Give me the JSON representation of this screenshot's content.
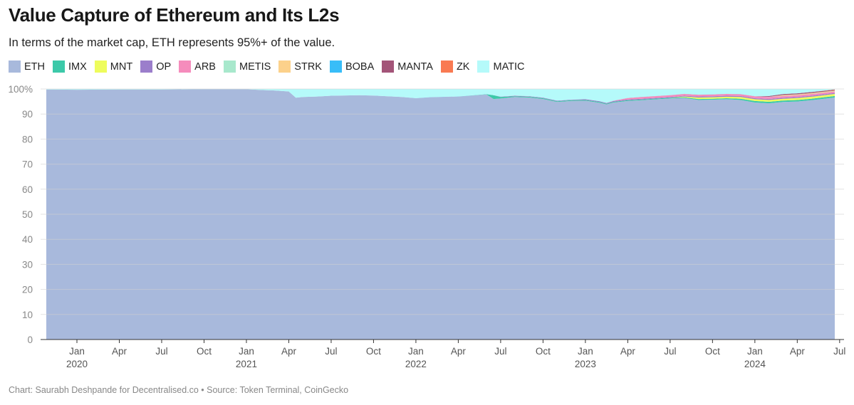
{
  "title": "Value Capture of Ethereum and Its L2s",
  "subtitle": "In terms of the market cap, ETH represents 95%+ of the value.",
  "footer": "Chart: Saurabh Deshpande for Decentralised.co • Source: Token Terminal, CoinGecko",
  "chart_data": {
    "type": "area",
    "stacked": true,
    "title": "Value Capture of Ethereum and Its L2s",
    "xlabel": "",
    "ylabel": "",
    "x_units": "months since Jan 2020",
    "ylim": [
      0,
      100
    ],
    "yticks": [
      0,
      10,
      20,
      30,
      40,
      50,
      60,
      70,
      80,
      90,
      100
    ],
    "ytick_labels": [
      "0",
      "10",
      "20",
      "30",
      "40",
      "50",
      "60",
      "70",
      "80",
      "90",
      "100%"
    ],
    "xticks": [
      {
        "m": 0,
        "label": "Jan",
        "year": "2020"
      },
      {
        "m": 3,
        "label": "Apr"
      },
      {
        "m": 6,
        "label": "Jul"
      },
      {
        "m": 9,
        "label": "Oct"
      },
      {
        "m": 12,
        "label": "Jan",
        "year": "2021"
      },
      {
        "m": 15,
        "label": "Apr"
      },
      {
        "m": 18,
        "label": "Jul"
      },
      {
        "m": 21,
        "label": "Oct"
      },
      {
        "m": 24,
        "label": "Jan",
        "year": "2022"
      },
      {
        "m": 27,
        "label": "Apr"
      },
      {
        "m": 30,
        "label": "Jul"
      },
      {
        "m": 33,
        "label": "Oct"
      },
      {
        "m": 36,
        "label": "Jan",
        "year": "2023"
      },
      {
        "m": 39,
        "label": "Apr"
      },
      {
        "m": 42,
        "label": "Jul"
      },
      {
        "m": 45,
        "label": "Oct"
      },
      {
        "m": 48,
        "label": "Jan",
        "year": "2024"
      },
      {
        "m": 51,
        "label": "Apr"
      },
      {
        "m": 54,
        "label": "Jul"
      }
    ],
    "grid": true,
    "legend_position": "top",
    "x": [
      -2.2,
      0,
      3,
      6,
      9,
      12,
      13,
      14,
      15,
      15.5,
      16,
      17,
      18,
      20,
      21,
      23,
      24,
      25,
      27,
      29,
      29.5,
      30,
      31,
      32,
      33,
      34,
      35,
      36,
      37,
      37.5,
      38,
      39,
      40,
      42,
      43,
      44,
      45,
      46,
      47,
      48,
      49,
      50,
      51,
      52,
      53.7
    ],
    "series": [
      {
        "name": "ETH",
        "color": "#a8b9dc",
        "values": [
          99.8,
          99.7,
          99.8,
          99.8,
          99.9,
          99.9,
          99.6,
          99.4,
          99.0,
          96.5,
          96.8,
          97.0,
          97.3,
          97.5,
          97.4,
          96.8,
          96.3,
          96.7,
          97.0,
          97.8,
          96.0,
          96.2,
          96.8,
          96.6,
          96.0,
          94.8,
          95.2,
          95.3,
          94.5,
          93.8,
          94.6,
          95.2,
          95.5,
          96.2,
          96.4,
          95.6,
          95.7,
          95.9,
          95.6,
          94.6,
          94.3,
          94.8,
          95.0,
          95.5,
          96.6
        ]
      },
      {
        "name": "IMX",
        "color": "#3cc9a9",
        "values": [
          0,
          0,
          0,
          0,
          0,
          0,
          0,
          0,
          0,
          0,
          0,
          0,
          0,
          0,
          0,
          0,
          0,
          0,
          0,
          0.1,
          1.5,
          0.6,
          0.3,
          0.3,
          0.3,
          0.3,
          0.3,
          0.3,
          0.3,
          0.3,
          0.3,
          0.3,
          0.3,
          0.3,
          0.3,
          0.4,
          0.4,
          0.4,
          0.5,
          0.6,
          0.6,
          0.6,
          0.6,
          0.6,
          0.6
        ]
      },
      {
        "name": "MNT",
        "color": "#eefc5c",
        "values": [
          0,
          0,
          0,
          0,
          0,
          0,
          0,
          0,
          0,
          0,
          0,
          0,
          0,
          0,
          0,
          0,
          0,
          0,
          0,
          0,
          0,
          0,
          0,
          0,
          0,
          0,
          0,
          0,
          0,
          0,
          0,
          0,
          0,
          0,
          0.3,
          0.6,
          0.6,
          0.6,
          0.7,
          0.7,
          0.7,
          0.7,
          0.8,
          0.8,
          0.8
        ]
      },
      {
        "name": "OP",
        "color": "#9b7ecb",
        "values": [
          0,
          0,
          0,
          0,
          0,
          0,
          0,
          0,
          0,
          0,
          0,
          0,
          0,
          0,
          0,
          0,
          0,
          0,
          0,
          0,
          0,
          0.1,
          0.2,
          0.2,
          0.2,
          0.2,
          0.2,
          0.3,
          0.3,
          0.3,
          0.3,
          0.3,
          0.3,
          0.3,
          0.3,
          0.4,
          0.4,
          0.4,
          0.4,
          0.4,
          0.4,
          0.4,
          0.4,
          0.4,
          0.4
        ]
      },
      {
        "name": "ARB",
        "color": "#f58cbc",
        "values": [
          0,
          0,
          0,
          0,
          0,
          0,
          0,
          0,
          0,
          0,
          0,
          0,
          0,
          0,
          0,
          0,
          0,
          0,
          0,
          0,
          0,
          0,
          0,
          0,
          0,
          0,
          0,
          0,
          0,
          0,
          0.1,
          0.6,
          0.7,
          0.7,
          0.7,
          0.7,
          0.7,
          0.7,
          0.7,
          0.8,
          0.8,
          0.7,
          0.7,
          0.7,
          0.6
        ]
      },
      {
        "name": "METIS",
        "color": "#a8e8cc",
        "values": [
          0,
          0,
          0,
          0,
          0,
          0,
          0,
          0,
          0,
          0,
          0,
          0,
          0,
          0,
          0,
          0,
          0,
          0,
          0,
          0,
          0,
          0.05,
          0.05,
          0.05,
          0.05,
          0.05,
          0.05,
          0.05,
          0.05,
          0.05,
          0.05,
          0.05,
          0.05,
          0.05,
          0.05,
          0.05,
          0.05,
          0.05,
          0.05,
          0.05,
          0.05,
          0.05,
          0.05,
          0.05,
          0.05
        ]
      },
      {
        "name": "STRK",
        "color": "#fcd18b",
        "values": [
          0,
          0,
          0,
          0,
          0,
          0,
          0,
          0,
          0,
          0,
          0,
          0,
          0,
          0,
          0,
          0,
          0,
          0,
          0,
          0,
          0,
          0,
          0,
          0,
          0,
          0,
          0,
          0,
          0,
          0,
          0,
          0,
          0,
          0,
          0,
          0,
          0,
          0,
          0,
          0,
          0,
          0.3,
          0.3,
          0.3,
          0.3
        ]
      },
      {
        "name": "BOBA",
        "color": "#38bdf8",
        "values": [
          0,
          0,
          0,
          0,
          0,
          0,
          0,
          0,
          0,
          0,
          0,
          0,
          0,
          0,
          0,
          0.03,
          0.03,
          0.03,
          0.03,
          0.03,
          0.03,
          0.03,
          0.03,
          0.03,
          0.03,
          0.03,
          0.03,
          0.03,
          0.03,
          0.03,
          0.03,
          0.03,
          0.03,
          0.03,
          0.03,
          0.03,
          0.03,
          0.03,
          0.03,
          0.03,
          0.03,
          0.03,
          0.03,
          0.03,
          0.03
        ]
      },
      {
        "name": "MANTA",
        "color": "#a35478",
        "values": [
          0,
          0,
          0,
          0,
          0,
          0,
          0,
          0,
          0,
          0,
          0,
          0,
          0,
          0,
          0,
          0,
          0,
          0,
          0,
          0,
          0,
          0,
          0,
          0,
          0,
          0,
          0,
          0,
          0,
          0,
          0,
          0,
          0,
          0,
          0,
          0,
          0,
          0,
          0,
          0,
          0.3,
          0.4,
          0.4,
          0.4,
          0.3
        ]
      },
      {
        "name": "ZK",
        "color": "#f97a52",
        "values": [
          0,
          0,
          0,
          0,
          0,
          0,
          0,
          0,
          0,
          0,
          0,
          0,
          0,
          0,
          0,
          0,
          0,
          0,
          0,
          0,
          0,
          0,
          0,
          0,
          0,
          0,
          0,
          0,
          0,
          0,
          0,
          0,
          0,
          0,
          0,
          0,
          0,
          0,
          0,
          0,
          0,
          0,
          0,
          0,
          0.15
        ]
      },
      {
        "name": "MATIC",
        "color": "#b5fafa",
        "values": [
          0.2,
          0.3,
          0.2,
          0.2,
          0.1,
          0.1,
          0.4,
          0.6,
          1.0,
          3.5,
          3.2,
          3.0,
          2.7,
          2.5,
          2.6,
          3.2,
          3.7,
          3.3,
          3.0,
          2.1,
          2.5,
          3.0,
          2.6,
          2.8,
          3.4,
          4.6,
          4.2,
          4.0,
          4.8,
          5.5,
          4.6,
          3.5,
          3.1,
          2.4,
          1.9,
          2.2,
          2.1,
          1.9,
          2.0,
          2.8,
          2.8,
          2.0,
          1.7,
          1.2,
          1.0
        ]
      }
    ]
  }
}
